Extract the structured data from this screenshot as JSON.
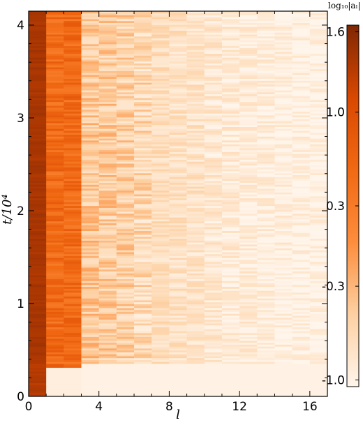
{
  "chart_data": {
    "type": "heatmap",
    "title": "",
    "xlabel": "l",
    "ylabel": "t/10⁴",
    "xlim": [
      0,
      17
    ],
    "ylim": [
      0,
      4.15
    ],
    "x_ticks": [
      0,
      4,
      8,
      12,
      16
    ],
    "y_ticks": [
      0,
      1,
      2,
      3,
      4
    ],
    "grid": false,
    "colorbar": {
      "label": "log₁₀|aₗ|",
      "range": [
        -1.05,
        1.65
      ],
      "ticks": [
        1.6,
        1.0,
        0.3,
        -0.3,
        -1.0
      ],
      "tick_labels": [
        "1.6",
        "1.0",
        "0.3",
        "-0.3",
        "-1.0"
      ],
      "colormap": "Oranges",
      "colors": [
        "#fff5eb",
        "#fdd0a2",
        "#fd8d3c",
        "#f16913",
        "#d94801",
        "#7f2704"
      ]
    },
    "columns": [
      {
        "l": 0,
        "mean_log10_al": 1.4
      },
      {
        "l": 1,
        "mean_log10_al": 0.55
      },
      {
        "l": 2,
        "mean_log10_al": 0.55
      },
      {
        "l": 3,
        "mean_log10_al": -0.45
      },
      {
        "l": 4,
        "mean_log10_al": -0.5
      },
      {
        "l": 5,
        "mean_log10_al": -0.55
      },
      {
        "l": 6,
        "mean_log10_al": -0.65
      },
      {
        "l": 7,
        "mean_log10_al": -0.7
      },
      {
        "l": 8,
        "mean_log10_al": -0.75
      },
      {
        "l": 9,
        "mean_log10_al": -0.78
      },
      {
        "l": 10,
        "mean_log10_al": -0.85
      },
      {
        "l": 11,
        "mean_log10_al": -0.9
      },
      {
        "l": 12,
        "mean_log10_al": -0.92
      },
      {
        "l": 13,
        "mean_log10_al": -0.95
      },
      {
        "l": 14,
        "mean_log10_al": -0.97
      },
      {
        "l": 15,
        "mean_log10_al": -0.98
      },
      {
        "l": 16,
        "mean_log10_al": -1.0
      }
    ]
  }
}
